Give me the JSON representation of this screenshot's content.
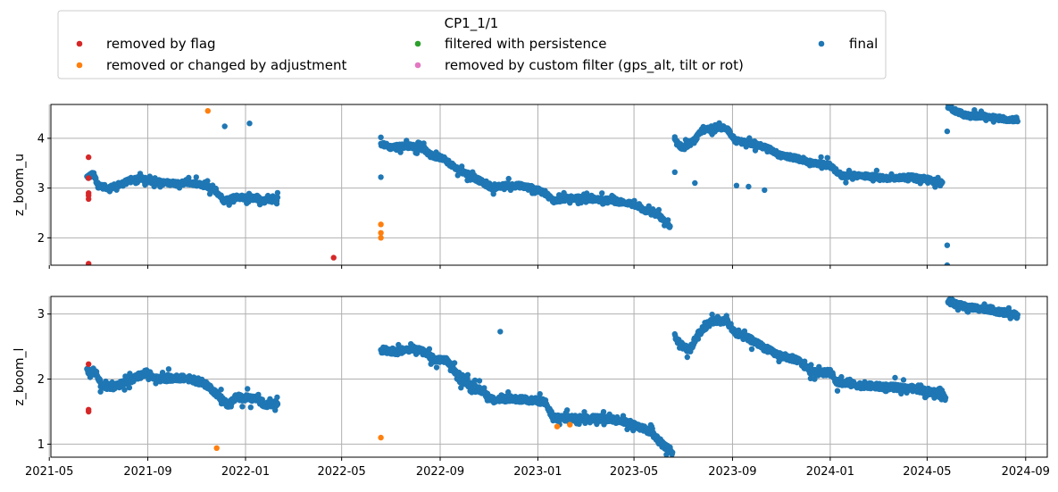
{
  "legend": {
    "title": "CP1_1/1",
    "entries": [
      {
        "label": "removed by flag",
        "color": "#d62728"
      },
      {
        "label": "removed or changed by adjustment",
        "color": "#ff7f0e"
      },
      {
        "label": "filtered with persistence",
        "color": "#2ca02c"
      },
      {
        "label": "removed by custom filter (gps_alt, tilt or rot)",
        "color": "#e377c2"
      },
      {
        "label": "final",
        "color": "#1f77b4"
      }
    ]
  },
  "chart_data": [
    {
      "type": "scatter",
      "ylabel": "z_boom_u",
      "xlim": [
        "2021-05-03",
        "2024-09-28"
      ],
      "ylim": [
        1.45,
        4.68
      ],
      "yticks": [
        2,
        3,
        4
      ],
      "xticks": [
        "2021-05",
        "2021-09",
        "2022-01",
        "2022-05",
        "2022-09",
        "2023-01",
        "2023-05",
        "2023-09",
        "2024-01",
        "2024-05",
        "2024-09"
      ],
      "grid": true,
      "series": [
        {
          "name": "removed by flag",
          "color": "#d62728",
          "points": [
            [
              "2021-06-19",
              3.62
            ],
            [
              "2021-06-19",
              3.2
            ],
            [
              "2021-06-19",
              2.9
            ],
            [
              "2021-06-19",
              2.85
            ],
            [
              "2021-06-19",
              2.78
            ],
            [
              "2021-06-19",
              1.48
            ],
            [
              "2022-04-21",
              1.6
            ]
          ]
        },
        {
          "name": "removed or changed by adjustment",
          "color": "#ff7f0e",
          "points": [
            [
              "2021-11-15",
              4.55
            ],
            [
              "2022-06-19",
              2.27
            ],
            [
              "2022-06-19",
              2.1
            ],
            [
              "2022-06-19",
              2.0
            ]
          ]
        },
        {
          "name": "final",
          "color": "#1f77b4",
          "points": [
            [
              "2021-12-06",
              4.24
            ],
            [
              "2022-01-06",
              4.3
            ],
            [
              "2022-06-19",
              4.02
            ],
            [
              "2022-06-19",
              3.22
            ],
            [
              "2023-06-21",
              3.32
            ],
            [
              "2023-07-16",
              3.1
            ],
            [
              "2023-09-06",
              3.05
            ],
            [
              "2023-09-21",
              3.03
            ],
            [
              "2023-10-11",
              2.96
            ],
            [
              "2024-05-26",
              4.14
            ],
            [
              "2024-05-26",
              1.85
            ],
            [
              "2024-05-26",
              1.45
            ]
          ],
          "tracks": [
            [
              [
                "2021-06-17",
                3.22
              ],
              [
                "2021-06-25",
                3.28
              ],
              [
                "2021-07-01",
                3.05
              ],
              [
                "2021-07-15",
                3.0
              ],
              [
                "2021-08-01",
                3.1
              ],
              [
                "2021-08-20",
                3.2
              ],
              [
                "2021-09-10",
                3.12
              ],
              [
                "2021-10-01",
                3.1
              ],
              [
                "2021-10-25",
                3.1
              ],
              [
                "2021-11-10",
                3.05
              ],
              [
                "2021-11-25",
                2.95
              ],
              [
                "2021-12-05",
                2.75
              ],
              [
                "2021-12-20",
                2.82
              ],
              [
                "2022-01-10",
                2.8
              ],
              [
                "2022-01-25",
                2.75
              ],
              [
                "2022-02-10",
                2.78
              ]
            ],
            [
              [
                "2022-06-19",
                3.9
              ],
              [
                "2022-07-01",
                3.82
              ],
              [
                "2022-07-20",
                3.85
              ],
              [
                "2022-08-10",
                3.82
              ],
              [
                "2022-08-20",
                3.65
              ],
              [
                "2022-09-05",
                3.6
              ],
              [
                "2022-09-20",
                3.4
              ],
              [
                "2022-10-05",
                3.28
              ],
              [
                "2022-10-20",
                3.15
              ],
              [
                "2022-11-05",
                3.0
              ],
              [
                "2022-11-20",
                3.05
              ],
              [
                "2022-12-10",
                3.05
              ],
              [
                "2022-12-25",
                3.0
              ],
              [
                "2023-01-10",
                2.9
              ],
              [
                "2023-01-20",
                2.75
              ],
              [
                "2023-02-10",
                2.8
              ],
              [
                "2023-03-10",
                2.78
              ],
              [
                "2023-04-01",
                2.75
              ],
              [
                "2023-04-25",
                2.7
              ],
              [
                "2023-05-15",
                2.55
              ],
              [
                "2023-06-01",
                2.45
              ],
              [
                "2023-06-15",
                2.2
              ]
            ],
            [
              [
                "2023-06-21",
                3.95
              ],
              [
                "2023-07-01",
                3.8
              ],
              [
                "2023-07-15",
                3.95
              ],
              [
                "2023-07-25",
                4.15
              ],
              [
                "2023-08-10",
                4.22
              ],
              [
                "2023-08-25",
                4.2
              ],
              [
                "2023-09-05",
                3.95
              ],
              [
                "2023-09-25",
                3.9
              ],
              [
                "2023-10-15",
                3.8
              ],
              [
                "2023-11-01",
                3.65
              ],
              [
                "2023-11-20",
                3.6
              ],
              [
                "2023-12-10",
                3.5
              ],
              [
                "2024-01-01",
                3.45
              ],
              [
                "2024-01-15",
                3.25
              ],
              [
                "2024-02-10",
                3.25
              ],
              [
                "2024-03-10",
                3.2
              ],
              [
                "2024-04-10",
                3.22
              ],
              [
                "2024-05-01",
                3.18
              ],
              [
                "2024-05-20",
                3.08
              ]
            ],
            [
              [
                "2024-05-27",
                4.65
              ],
              [
                "2024-06-05",
                4.55
              ],
              [
                "2024-06-20",
                4.45
              ],
              [
                "2024-07-10",
                4.45
              ],
              [
                "2024-07-25",
                4.42
              ],
              [
                "2024-08-10",
                4.38
              ],
              [
                "2024-08-22",
                4.38
              ]
            ]
          ]
        }
      ]
    },
    {
      "type": "scatter",
      "ylabel": "z_boom_l",
      "xlim": [
        "2021-05-03",
        "2024-09-28"
      ],
      "ylim": [
        0.8,
        3.27
      ],
      "yticks": [
        1,
        2,
        3
      ],
      "xticks": [
        "2021-05",
        "2021-09",
        "2022-01",
        "2022-05",
        "2022-09",
        "2023-01",
        "2023-05",
        "2023-09",
        "2024-01",
        "2024-05",
        "2024-09"
      ],
      "grid": true,
      "series": [
        {
          "name": "removed by flag",
          "color": "#d62728",
          "points": [
            [
              "2021-06-19",
              2.23
            ],
            [
              "2021-06-19",
              1.53
            ],
            [
              "2021-06-19",
              1.5
            ]
          ]
        },
        {
          "name": "removed or changed by adjustment",
          "color": "#ff7f0e",
          "points": [
            [
              "2021-11-26",
              0.94
            ],
            [
              "2022-06-19",
              1.1
            ],
            [
              "2023-01-25",
              1.27
            ],
            [
              "2023-02-10",
              1.3
            ]
          ]
        },
        {
          "name": "final",
          "color": "#1f77b4",
          "points": [
            [
              "2022-11-15",
              2.73
            ]
          ],
          "tracks": [
            [
              [
                "2021-06-17",
                2.12
              ],
              [
                "2021-06-28",
                2.1
              ],
              [
                "2021-07-05",
                1.9
              ],
              [
                "2021-07-20",
                1.88
              ],
              [
                "2021-08-10",
                1.98
              ],
              [
                "2021-08-30",
                2.1
              ],
              [
                "2021-09-15",
                2.0
              ],
              [
                "2021-10-10",
                2.02
              ],
              [
                "2021-10-25",
                2.0
              ],
              [
                "2021-11-15",
                1.9
              ],
              [
                "2021-11-28",
                1.75
              ],
              [
                "2021-12-10",
                1.6
              ],
              [
                "2021-12-20",
                1.72
              ],
              [
                "2022-01-15",
                1.7
              ],
              [
                "2022-01-25",
                1.6
              ],
              [
                "2022-02-10",
                1.63
              ]
            ],
            [
              [
                "2022-06-19",
                2.45
              ],
              [
                "2022-07-10",
                2.42
              ],
              [
                "2022-07-30",
                2.48
              ],
              [
                "2022-08-10",
                2.42
              ],
              [
                "2022-08-25",
                2.3
              ],
              [
                "2022-09-10",
                2.28
              ],
              [
                "2022-09-25",
                2.0
              ],
              [
                "2022-10-10",
                1.9
              ],
              [
                "2022-10-25",
                1.8
              ],
              [
                "2022-11-05",
                1.68
              ],
              [
                "2022-11-25",
                1.7
              ],
              [
                "2022-12-20",
                1.68
              ],
              [
                "2023-01-10",
                1.65
              ],
              [
                "2023-01-20",
                1.4
              ],
              [
                "2023-02-15",
                1.4
              ],
              [
                "2023-03-15",
                1.4
              ],
              [
                "2023-04-10",
                1.38
              ],
              [
                "2023-05-01",
                1.3
              ],
              [
                "2023-05-20",
                1.2
              ],
              [
                "2023-06-05",
                1.0
              ],
              [
                "2023-06-18",
                0.88
              ]
            ],
            [
              [
                "2023-06-21",
                2.65
              ],
              [
                "2023-07-01",
                2.5
              ],
              [
                "2023-07-10",
                2.45
              ],
              [
                "2023-07-20",
                2.7
              ],
              [
                "2023-08-05",
                2.88
              ],
              [
                "2023-08-25",
                2.9
              ],
              [
                "2023-09-05",
                2.7
              ],
              [
                "2023-09-25",
                2.6
              ],
              [
                "2023-10-15",
                2.45
              ],
              [
                "2023-11-01",
                2.35
              ],
              [
                "2023-11-20",
                2.3
              ],
              [
                "2023-12-10",
                2.1
              ],
              [
                "2024-01-01",
                2.1
              ],
              [
                "2024-01-10",
                1.95
              ],
              [
                "2024-02-10",
                1.9
              ],
              [
                "2024-03-10",
                1.88
              ],
              [
                "2024-04-10",
                1.86
              ],
              [
                "2024-05-10",
                1.8
              ],
              [
                "2024-05-24",
                1.72
              ]
            ],
            [
              [
                "2024-05-27",
                3.22
              ],
              [
                "2024-06-05",
                3.15
              ],
              [
                "2024-06-20",
                3.1
              ],
              [
                "2024-07-15",
                3.08
              ],
              [
                "2024-08-05",
                3.02
              ],
              [
                "2024-08-22",
                2.98
              ]
            ]
          ]
        }
      ]
    }
  ]
}
